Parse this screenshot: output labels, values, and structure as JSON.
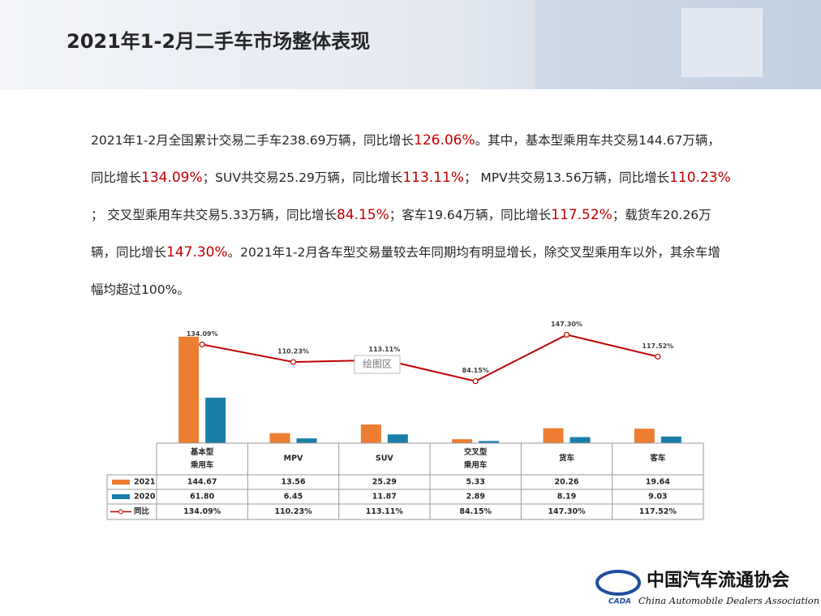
{
  "header": {
    "title": "2021年1-2月二手车市场整体表现"
  },
  "paragraph": [
    {
      "text": "2021年1-2月全国累计交易二手车238.69万辆，同比增长"
    },
    {
      "text": "126.06%",
      "emphasis": true
    },
    {
      "text": "。其中，基本型乘用车共交易144.67万辆，同比增长"
    },
    {
      "text": "134.09%",
      "emphasis": true
    },
    {
      "text": "；SUV共交易25.29万辆，同比增长"
    },
    {
      "text": "113.11%",
      "emphasis": true
    },
    {
      "text": "； MPV共交易13.56万辆，同比增长"
    },
    {
      "text": "110.23%",
      "emphasis": true
    },
    {
      "text": " ； 交叉型乘用车共交易5.33万辆，同比增长"
    },
    {
      "text": "84.15%",
      "emphasis": true
    },
    {
      "text": "；客车19.64万辆，同比增长"
    },
    {
      "text": "117.52%",
      "emphasis": true
    },
    {
      "text": "；载货车20.26万辆，同比增长"
    },
    {
      "text": "147.30%",
      "emphasis": true
    },
    {
      "text": "。2021年1-2月各车型交易量较去年同期均有明显增长，除交叉型乘用车以外，其余车增幅均超过100%。"
    }
  ],
  "chart_data": {
    "type": "bar-line",
    "categories": [
      "基本型\n乘用车",
      "MPV",
      "SUV",
      "交叉型\n乘用车",
      "货车",
      "客车"
    ],
    "series": [
      {
        "name": "2021",
        "type": "bar",
        "color": "#ed7d31",
        "values": [
          144.67,
          13.56,
          25.29,
          5.33,
          20.26,
          19.64
        ],
        "value_labels": [
          "144.67",
          "13.56",
          "25.29",
          "5.33",
          "20.26",
          "19.64"
        ]
      },
      {
        "name": "2020",
        "type": "bar",
        "color": "#1a7fa8",
        "values": [
          61.8,
          6.45,
          11.87,
          2.89,
          8.19,
          9.03
        ],
        "value_labels": [
          "61.80",
          "6.45",
          "11.87",
          "2.89",
          "8.19",
          "9.03"
        ]
      },
      {
        "name": "同比",
        "type": "line",
        "axis": "y2",
        "color": "#c00000",
        "values": [
          134.09,
          110.23,
          113.11,
          84.15,
          147.3,
          117.52
        ],
        "value_labels": [
          "134.09%",
          "110.23%",
          "113.11%",
          "84.15%",
          "147.30%",
          "117.52%"
        ]
      }
    ],
    "ylim": [
      0,
      150
    ],
    "y2lim": [
      0,
      150
    ],
    "tooltip": "绘图区"
  },
  "logo": {
    "abbr": "CADA",
    "name_cn": "中国汽车流通协会",
    "name_en": "China Automobile Dealers Association"
  }
}
